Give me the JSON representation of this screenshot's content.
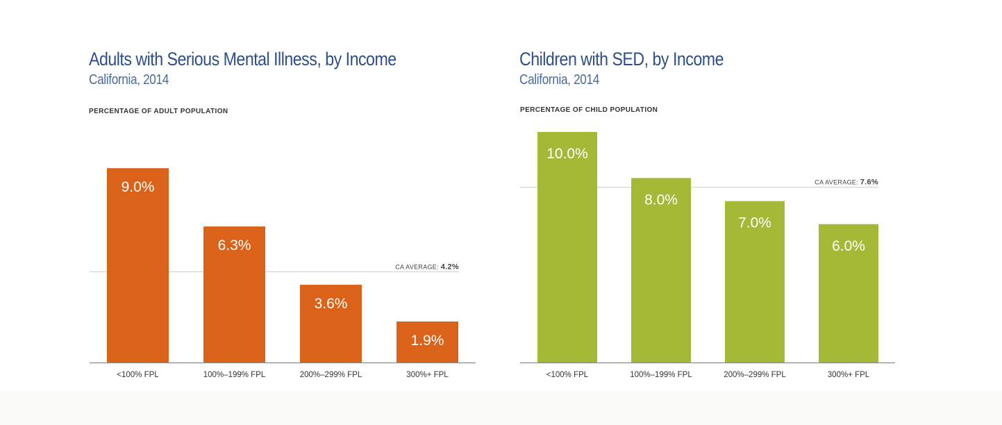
{
  "chart_data": [
    {
      "type": "bar",
      "title": "Adults with Serious Mental Illness, by Income",
      "subtitle": "California, 2014",
      "ylabel": "PERCENTAGE OF ADULT POPULATION",
      "categories": [
        "<100% FPL",
        "100%–199% FPL",
        "200%–299% FPL",
        "300%+ FPL"
      ],
      "values": [
        9.0,
        6.3,
        3.6,
        1.9
      ],
      "value_labels": [
        "9.0%",
        "6.3%",
        "3.6%",
        "1.9%"
      ],
      "reference_line": {
        "label": "CA AVERAGE:",
        "value": 4.2,
        "value_label": "4.2%"
      },
      "ylim": [
        0,
        11
      ],
      "bar_color": "#da6319",
      "grid": false
    },
    {
      "type": "bar",
      "title": "Children with SED, by Income",
      "subtitle": "California, 2014",
      "ylabel": "PERCENTAGE OF CHILD POPULATION",
      "categories": [
        "<100% FPL",
        "100%–199% FPL",
        "200%–299% FPL",
        "300%+ FPL"
      ],
      "values": [
        10.0,
        8.0,
        7.0,
        6.0
      ],
      "value_labels": [
        "10.0%",
        "8.0%",
        "7.0%",
        "6.0%"
      ],
      "reference_line": {
        "label": "CA AVERAGE:",
        "value": 7.6,
        "value_label": "7.6%"
      },
      "ylim": [
        0,
        10
      ],
      "bar_color": "#a5b936",
      "grid": false
    }
  ],
  "colors": {
    "title": "#2e4f86",
    "subtitle": "#4a6a9a",
    "axis": "#8a8a8a",
    "reference_line": "#cccccc"
  }
}
